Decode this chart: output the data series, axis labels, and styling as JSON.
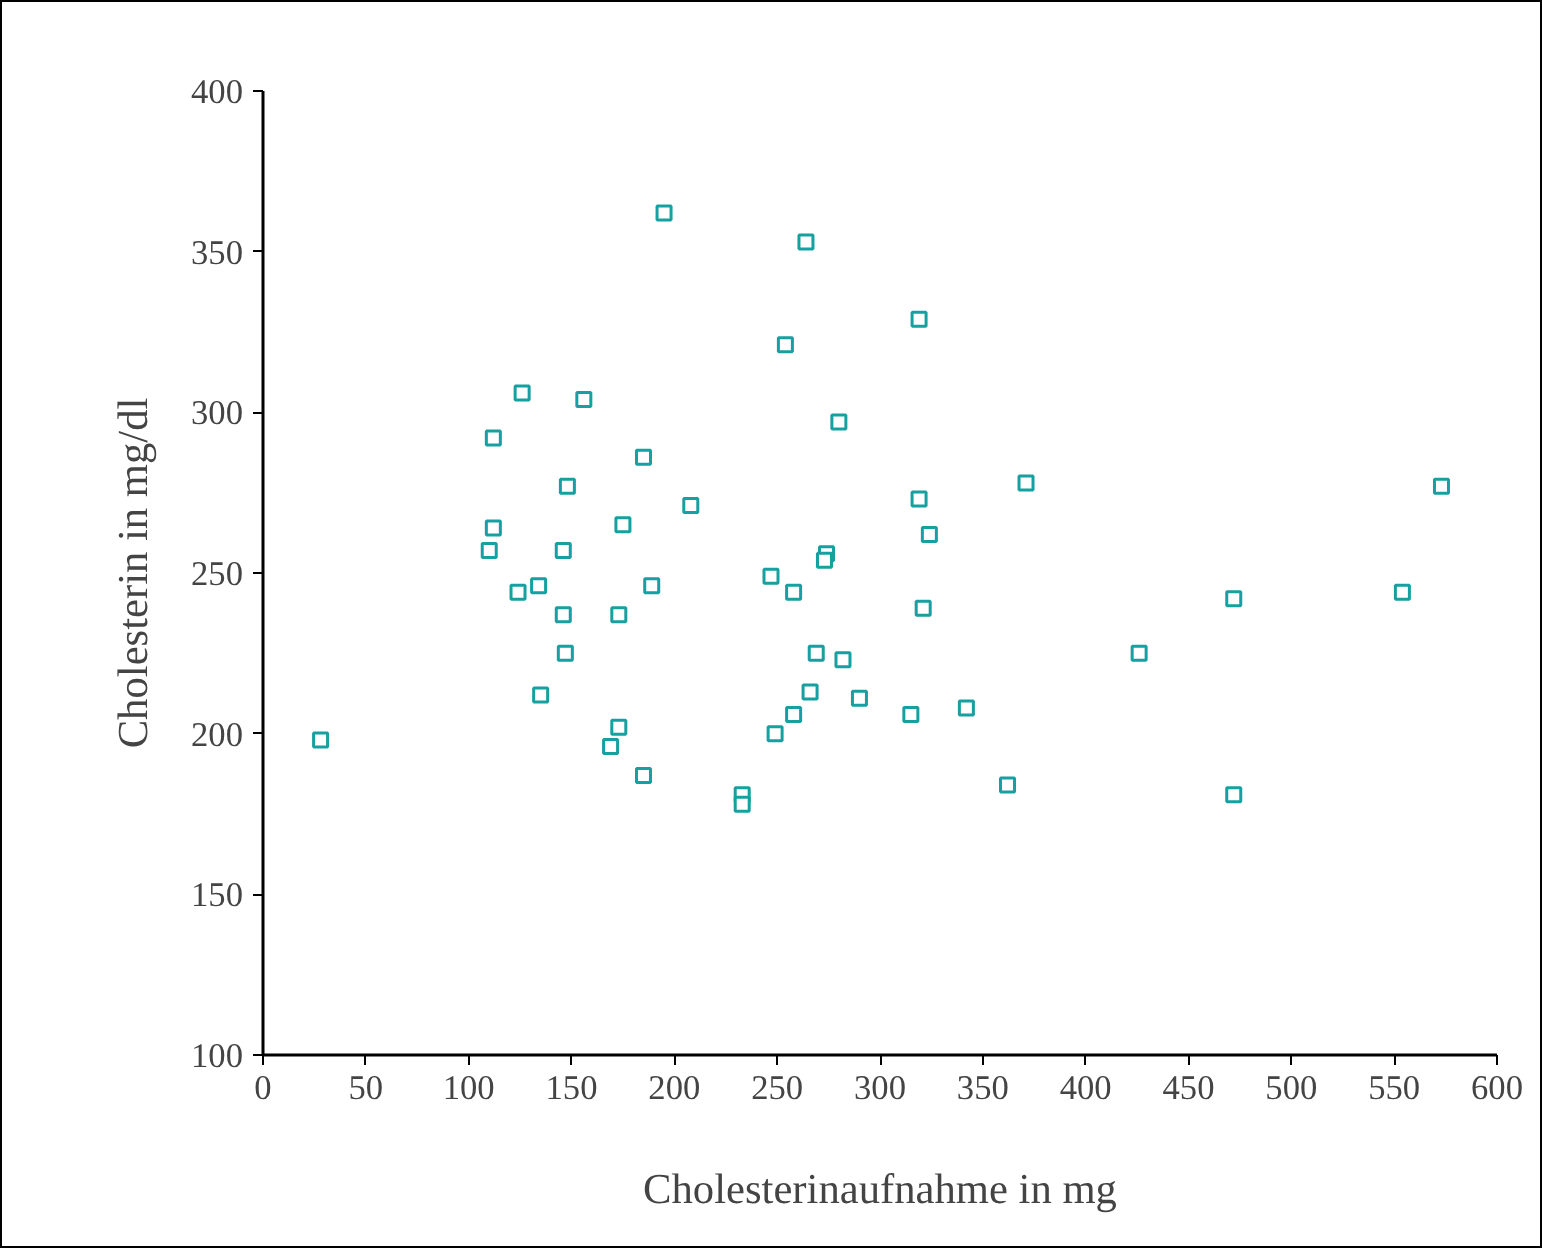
{
  "chart_data": {
    "type": "scatter",
    "xlabel": "Cholesterinaufnahme in mg",
    "ylabel": "Cholesterin in mg/dl",
    "xlim": [
      0,
      600
    ],
    "xticks": [
      0,
      50,
      100,
      150,
      200,
      250,
      300,
      350,
      400,
      450,
      500,
      550,
      600
    ],
    "ylim": [
      100,
      400
    ],
    "yticks": [
      100,
      150,
      200,
      250,
      300,
      350,
      400
    ],
    "grid": false,
    "marker": "square",
    "series": [
      {
        "color": "#16a0a0",
        "x": [
          28,
          195,
          264,
          319,
          254,
          126,
          112,
          156,
          280,
          185,
          148,
          208,
          175,
          319,
          371,
          573,
          112,
          110,
          146,
          324,
          274,
          273,
          247,
          189,
          134,
          124,
          258,
          321,
          146,
          173,
          472,
          554,
          426,
          147,
          269,
          282,
          135,
          266,
          290,
          315,
          342,
          258,
          173,
          249,
          169,
          185,
          233,
          233,
          362,
          472
        ],
        "values": [
          198,
          362,
          353,
          329,
          321,
          306,
          292,
          304,
          297,
          286,
          277,
          271,
          265,
          273,
          278,
          277,
          264,
          257,
          257,
          262,
          256,
          254,
          249,
          246,
          246,
          244,
          244,
          239,
          237,
          237,
          242,
          244,
          225,
          225,
          225,
          223,
          212,
          213,
          211,
          206,
          208,
          206,
          202,
          200,
          196,
          187,
          181,
          178,
          184,
          181
        ]
      }
    ]
  }
}
